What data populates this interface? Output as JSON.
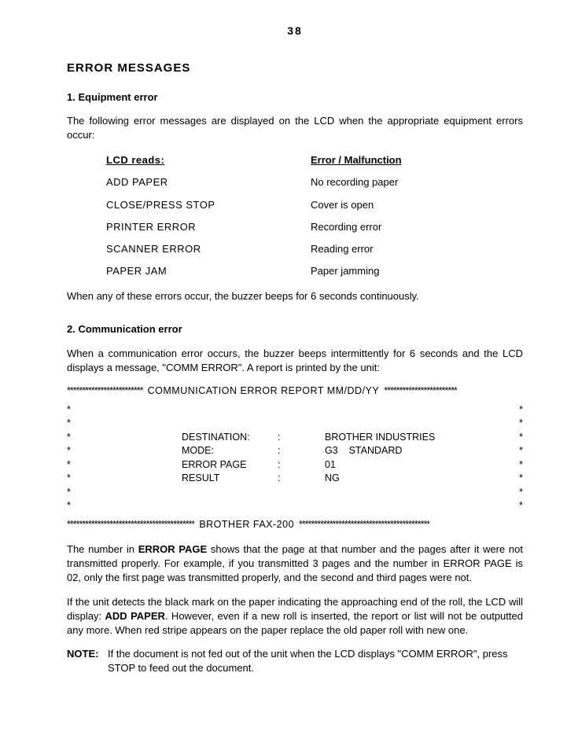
{
  "pageNumber": "38",
  "title": "ERROR MESSAGES",
  "section1": {
    "heading": "1.   Equipment error",
    "intro": "The following error messages are displayed on the LCD when the appropriate equipment errors occur:",
    "col1Header": "LCD reads:",
    "col2Header": "Error / Malfunction",
    "rows": [
      {
        "lcd": "ADD PAPER",
        "err": "No recording paper"
      },
      {
        "lcd": "CLOSE/PRESS STOP",
        "err": "Cover is open"
      },
      {
        "lcd": "PRINTER ERROR",
        "err": "Recording error"
      },
      {
        "lcd": "SCANNER ERROR",
        "err": "Reading error"
      },
      {
        "lcd": "PAPER JAM",
        "err": "Paper jamming"
      }
    ],
    "outro": "When any of these errors occur, the buzzer beeps for 6 seconds continuously."
  },
  "section2": {
    "heading": "2.   Communication error",
    "intro": "When a communication error occurs, the buzzer beeps intermittently for 6 seconds and the LCD displays a message, \"COMM ERROR\". A report is printed by the unit:",
    "report": {
      "starsTop1": "*************************",
      "topTitle": "COMMUNICATION ERROR REPORT MM/DD/YY",
      "starsTop2": "************************",
      "starSide": "*",
      "rows": [
        {
          "label": "DESTINATION:",
          "colon": ":",
          "value": "BROTHER INDUSTRIES"
        },
        {
          "label": "MODE:",
          "colon": ":",
          "value": "G3    STANDARD"
        },
        {
          "label": "ERROR PAGE",
          "colon": ":",
          "value": "01"
        },
        {
          "label": "RESULT",
          "colon": ":",
          "value": "NG"
        }
      ],
      "starsBot1": "******************************************",
      "botTitle": "BROTHER FAX-200",
      "starsBot2": "*******************************************"
    },
    "para1a": "The number in ",
    "para1bold": "ERROR PAGE",
    "para1b": " shows that the page at that number and the pages after it were not transmitted properly.  For example, if you transmitted 3 pages and the number in ERROR PAGE is 02, only the first page was transmitted properly, and the second and third pages were not.",
    "para2a": "If the unit detects the black mark on the paper indicating the approaching end of the roll, the LCD will display: ",
    "para2bold": "ADD PAPER",
    "para2b": ".  However, even if a new roll is inserted, the report or list will not be outputted any more.  When red stripe appears on the paper replace the old paper roll with new one.",
    "noteLabel": "NOTE:",
    "noteBody": "If the document is not fed out of the unit when the LCD displays \"COMM ERROR\", press STOP to feed out the document."
  }
}
